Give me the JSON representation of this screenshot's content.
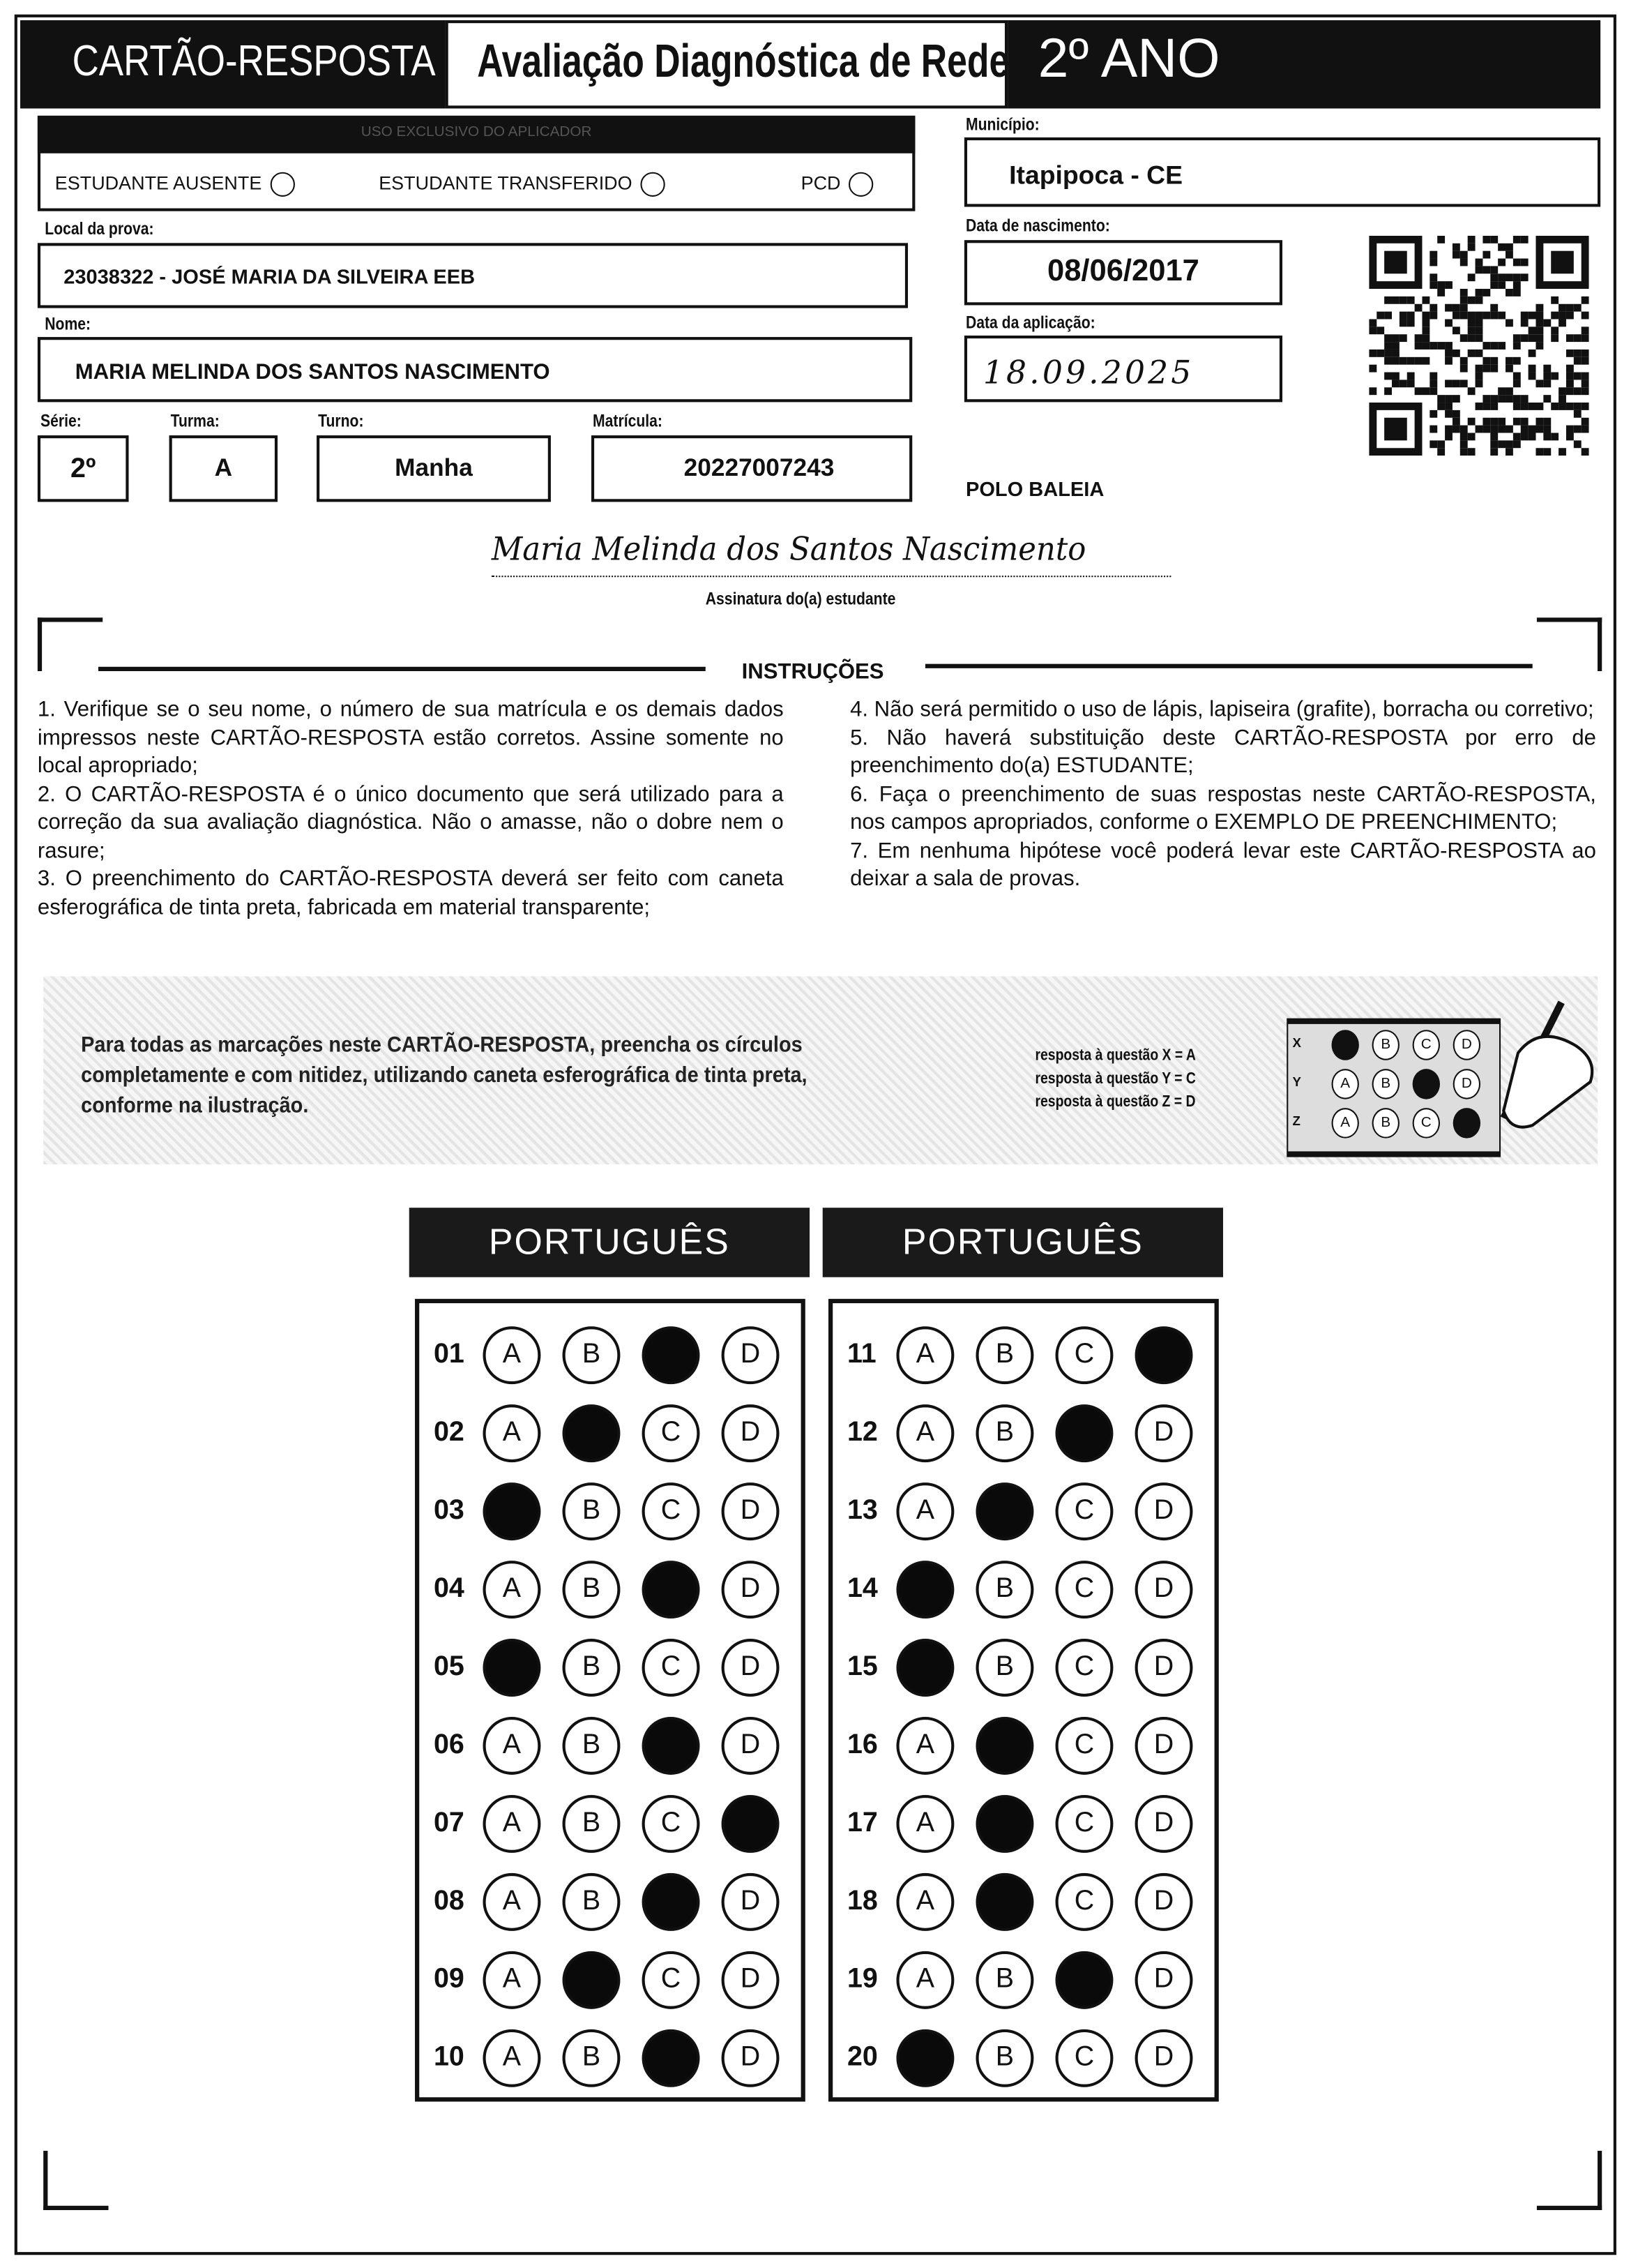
{
  "header": {
    "card_label": "CARTÃO-RESPOSTA",
    "evaluation_title": "Avaliação Diagnóstica de Rede",
    "grade": "2º ANO"
  },
  "applicator": {
    "title": "USO EXCLUSIVO DO APLICADOR",
    "options": [
      "ESTUDANTE AUSENTE",
      "ESTUDANTE TRANSFERIDO",
      "PCD"
    ]
  },
  "fields": {
    "municipio_label": "Município:",
    "municipio": "Itapipoca - CE",
    "local_label": "Local da prova:",
    "local": "23038322 - JOSÉ MARIA DA SILVEIRA EEB",
    "nascimento_label": "Data de nascimento:",
    "nascimento": "08/06/2017",
    "nome_label": "Nome:",
    "nome": "MARIA MELINDA DOS SANTOS NASCIMENTO",
    "aplicacao_label": "Data da aplicação:",
    "aplicacao": "18.09.2025",
    "serie_label": "Série:",
    "serie": "2º",
    "turma_label": "Turma:",
    "turma": "A",
    "turno_label": "Turno:",
    "turno": "Manha",
    "matricula_label": "Matrícula:",
    "matricula": "20227007243",
    "polo": "POLO BALEIA"
  },
  "signature": {
    "handwritten": "Maria Melinda dos Santos Nascimento",
    "label": "Assinatura do(a) estudante"
  },
  "instructions": {
    "title": "INSTRUÇÕES",
    "left": [
      "1. Verifique se o seu nome, o número de sua matrícula e os demais dados impressos neste CARTÃO-RESPOSTA estão corretos. Assine somente no local apropriado;",
      "2. O CARTÃO-RESPOSTA é o único documento que será utilizado para a correção da sua avaliação diagnóstica. Não o amasse, não o dobre nem o rasure;",
      "3. O preenchimento do CARTÃO-RESPOSTA deverá ser feito com caneta esferográfica de tinta preta, fabricada em material transparente;"
    ],
    "right": [
      "4. Não será permitido o uso de lápis, lapiseira (grafite), borracha ou corretivo;",
      "5. Não haverá substituição deste CARTÃO-RESPOSTA por erro de preenchimento do(a) ESTUDANTE;",
      "6. Faça o preenchimento de suas respostas neste CARTÃO-RESPOSTA, nos campos apropriados, conforme o EXEMPLO DE PREENCHIMENTO;",
      "7. Em nenhuma hipótese você poderá levar este CARTÃO-RESPOSTA ao deixar a sala de provas."
    ]
  },
  "example": {
    "text": "Para todas as marcações neste CARTÃO-RESPOSTA, preencha os círculos completamente e com nitidez, utilizando caneta esferográfica de tinta preta, conforme na ilustração.",
    "legend": [
      "resposta à questão X = A",
      "resposta à questão Y = C",
      "resposta à questão Z = D"
    ],
    "rows": [
      {
        "label": "X",
        "answer": "A"
      },
      {
        "label": "Y",
        "answer": "C"
      },
      {
        "label": "Z",
        "answer": "D"
      }
    ]
  },
  "options": [
    "A",
    "B",
    "C",
    "D"
  ],
  "sections": [
    {
      "title": "PORTUGUÊS",
      "questions": [
        {
          "n": "01",
          "marked": "C"
        },
        {
          "n": "02",
          "marked": "B"
        },
        {
          "n": "03",
          "marked": "A"
        },
        {
          "n": "04",
          "marked": "C"
        },
        {
          "n": "05",
          "marked": "A"
        },
        {
          "n": "06",
          "marked": "C"
        },
        {
          "n": "07",
          "marked": "D"
        },
        {
          "n": "08",
          "marked": "C"
        },
        {
          "n": "09",
          "marked": "B"
        },
        {
          "n": "10",
          "marked": "C"
        }
      ]
    },
    {
      "title": "PORTUGUÊS",
      "questions": [
        {
          "n": "11",
          "marked": "D"
        },
        {
          "n": "12",
          "marked": "C"
        },
        {
          "n": "13",
          "marked": "B"
        },
        {
          "n": "14",
          "marked": "A"
        },
        {
          "n": "15",
          "marked": "A"
        },
        {
          "n": "16",
          "marked": "B"
        },
        {
          "n": "17",
          "marked": "B"
        },
        {
          "n": "18",
          "marked": "B"
        },
        {
          "n": "19",
          "marked": "C"
        },
        {
          "n": "20",
          "marked": "A"
        }
      ]
    }
  ]
}
